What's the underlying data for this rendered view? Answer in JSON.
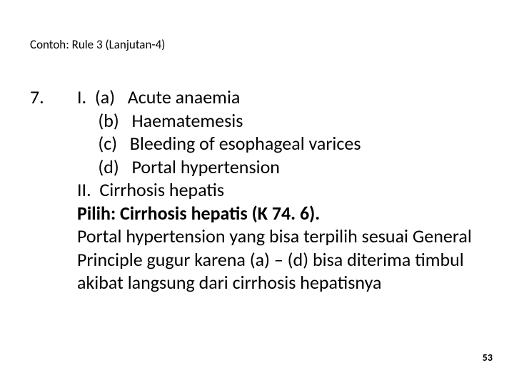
{
  "title": "Contoh: Rule 3 (Lanjutan-4)",
  "number": "7.",
  "lines": {
    "l1": "I.  (a)   Acute anaemia",
    "l2": "     (b)   Haematemesis",
    "l3": "     (c)   Bleeding of esophageal varices",
    "l4": "     (d)   Portal hypertension",
    "l5": "II.  Cirrhosis hepatis",
    "l6": "Pilih: Cirrhosis hepatis (K 74. 6).",
    "l7": "Portal hypertension yang bisa terpilih sesuai General Principle gugur karena (a) – (d) bisa diterima timbul akibat langsung dari cirrhosis hepatisnya"
  },
  "page": "53"
}
